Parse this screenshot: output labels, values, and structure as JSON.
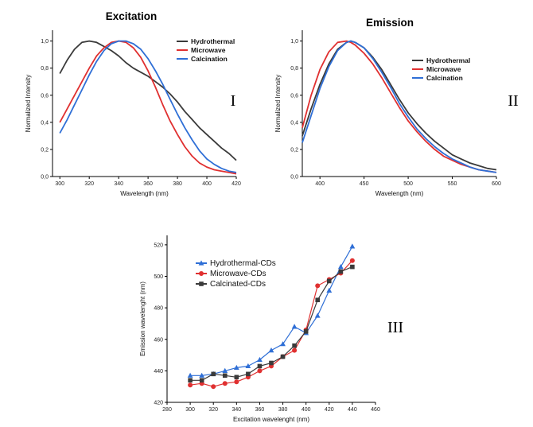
{
  "chart_data": [
    {
      "type": "line",
      "title": "Excitation",
      "panel_label": "I",
      "xlabel": "Wavelength (nm)",
      "ylabel": "Normalized Intensity",
      "xlim": [
        295,
        420
      ],
      "ylim": [
        0,
        1.08
      ],
      "xticks": [
        300,
        320,
        340,
        360,
        380,
        400,
        420
      ],
      "yticks": [
        0.0,
        0.2,
        0.4,
        0.6,
        0.8,
        1.0
      ],
      "ytick_labels": [
        "0,0",
        "0,2",
        "0,4",
        "0,6",
        "0,8",
        "1,0"
      ],
      "legend_position": "top-right",
      "series": [
        {
          "name": "Hydrothermal",
          "color": "#3a3a3a",
          "x": [
            300,
            305,
            310,
            315,
            320,
            325,
            330,
            335,
            340,
            345,
            350,
            355,
            360,
            365,
            370,
            375,
            380,
            385,
            390,
            395,
            400,
            405,
            410,
            415,
            420
          ],
          "y": [
            0.76,
            0.86,
            0.94,
            0.99,
            1.0,
            0.99,
            0.96,
            0.93,
            0.89,
            0.84,
            0.8,
            0.77,
            0.74,
            0.7,
            0.66,
            0.61,
            0.55,
            0.48,
            0.42,
            0.36,
            0.31,
            0.26,
            0.21,
            0.17,
            0.12
          ]
        },
        {
          "name": "Microwave",
          "color": "#e03030",
          "x": [
            300,
            305,
            310,
            315,
            320,
            325,
            330,
            335,
            340,
            345,
            350,
            355,
            360,
            365,
            370,
            375,
            380,
            385,
            390,
            395,
            400,
            405,
            410,
            415,
            420
          ],
          "y": [
            0.4,
            0.5,
            0.6,
            0.7,
            0.8,
            0.89,
            0.95,
            0.99,
            1.0,
            0.99,
            0.95,
            0.88,
            0.78,
            0.66,
            0.53,
            0.41,
            0.31,
            0.22,
            0.15,
            0.1,
            0.07,
            0.05,
            0.04,
            0.03,
            0.02
          ]
        },
        {
          "name": "Calcination",
          "color": "#2f6fd6",
          "x": [
            300,
            305,
            310,
            315,
            320,
            325,
            330,
            335,
            340,
            345,
            350,
            355,
            360,
            365,
            370,
            375,
            380,
            385,
            390,
            395,
            400,
            405,
            410,
            415,
            420
          ],
          "y": [
            0.32,
            0.42,
            0.53,
            0.64,
            0.75,
            0.85,
            0.93,
            0.98,
            1.0,
            1.0,
            0.98,
            0.94,
            0.87,
            0.78,
            0.68,
            0.57,
            0.46,
            0.36,
            0.27,
            0.19,
            0.13,
            0.09,
            0.06,
            0.04,
            0.03
          ]
        }
      ]
    },
    {
      "type": "line",
      "title": "Emission",
      "panel_label": "II",
      "xlabel": "Wavelength (nm)",
      "ylabel": "Normalized Intensity",
      "xlim": [
        380,
        600
      ],
      "ylim": [
        0,
        1.08
      ],
      "xticks": [
        400,
        450,
        500,
        550,
        600
      ],
      "yticks": [
        0.0,
        0.2,
        0.4,
        0.6,
        0.8,
        1.0
      ],
      "ytick_labels": [
        "0,0",
        "0,2",
        "0,4",
        "0,6",
        "0,8",
        "1,0"
      ],
      "legend_position": "top-right",
      "series": [
        {
          "name": "Hydrothermal",
          "color": "#3a3a3a",
          "x": [
            380,
            390,
            400,
            410,
            420,
            430,
            435,
            440,
            450,
            460,
            470,
            480,
            490,
            500,
            510,
            520,
            530,
            540,
            550,
            560,
            570,
            580,
            590,
            600
          ],
          "y": [
            0.3,
            0.5,
            0.68,
            0.83,
            0.94,
            0.99,
            1.0,
            0.99,
            0.95,
            0.88,
            0.79,
            0.68,
            0.57,
            0.47,
            0.39,
            0.32,
            0.26,
            0.21,
            0.16,
            0.13,
            0.1,
            0.08,
            0.06,
            0.05
          ]
        },
        {
          "name": "Microwave",
          "color": "#e03030",
          "x": [
            380,
            390,
            400,
            410,
            420,
            430,
            435,
            440,
            450,
            460,
            470,
            480,
            490,
            500,
            510,
            520,
            530,
            540,
            550,
            560,
            570,
            580,
            590,
            600
          ],
          "y": [
            0.36,
            0.6,
            0.79,
            0.92,
            0.99,
            1.0,
            0.99,
            0.97,
            0.91,
            0.83,
            0.73,
            0.62,
            0.51,
            0.41,
            0.33,
            0.26,
            0.2,
            0.15,
            0.12,
            0.09,
            0.07,
            0.05,
            0.04,
            0.03
          ]
        },
        {
          "name": "Calcination",
          "color": "#2f6fd6",
          "x": [
            380,
            390,
            400,
            410,
            420,
            430,
            435,
            440,
            450,
            460,
            470,
            480,
            490,
            500,
            510,
            520,
            530,
            540,
            550,
            560,
            570,
            580,
            590,
            600
          ],
          "y": [
            0.25,
            0.45,
            0.65,
            0.81,
            0.93,
            0.99,
            1.0,
            0.99,
            0.95,
            0.87,
            0.77,
            0.66,
            0.54,
            0.44,
            0.35,
            0.28,
            0.22,
            0.17,
            0.13,
            0.1,
            0.07,
            0.05,
            0.04,
            0.03
          ]
        }
      ]
    },
    {
      "type": "line",
      "title": "",
      "panel_label": "III",
      "xlabel": "Excitation wavelenght (nm)",
      "ylabel": "Emission wavelenght (nm)",
      "xlim": [
        280,
        460
      ],
      "ylim": [
        420,
        526
      ],
      "xticks": [
        280,
        300,
        320,
        340,
        360,
        380,
        400,
        420,
        440,
        460
      ],
      "yticks": [
        420,
        440,
        460,
        480,
        500,
        520
      ],
      "legend_position": "top-left",
      "series": [
        {
          "name": "Hydrothermal-CDs",
          "color": "#2f6fd6",
          "marker": "triangle",
          "x": [
            300,
            310,
            320,
            330,
            340,
            350,
            360,
            370,
            380,
            390,
            400,
            410,
            420,
            430,
            440
          ],
          "y": [
            437,
            437,
            438,
            440,
            442,
            443,
            447,
            453,
            457,
            468,
            464,
            475,
            491,
            506,
            519
          ]
        },
        {
          "name": "Microwave-CDs",
          "color": "#e03030",
          "marker": "circle",
          "x": [
            300,
            310,
            320,
            330,
            340,
            350,
            360,
            370,
            380,
            390,
            400,
            410,
            420,
            430,
            440
          ],
          "y": [
            431,
            432,
            430,
            432,
            433,
            436,
            440,
            443,
            449,
            453,
            466,
            494,
            498,
            502,
            510
          ]
        },
        {
          "name": "Calcinated-CDs",
          "color": "#3a3a3a",
          "marker": "square",
          "x": [
            300,
            310,
            320,
            330,
            340,
            350,
            360,
            370,
            380,
            390,
            400,
            410,
            420,
            430,
            440
          ],
          "y": [
            434,
            434,
            438,
            437,
            436,
            438,
            443,
            445,
            449,
            456,
            465,
            485,
            497,
            503,
            506
          ]
        }
      ]
    }
  ]
}
